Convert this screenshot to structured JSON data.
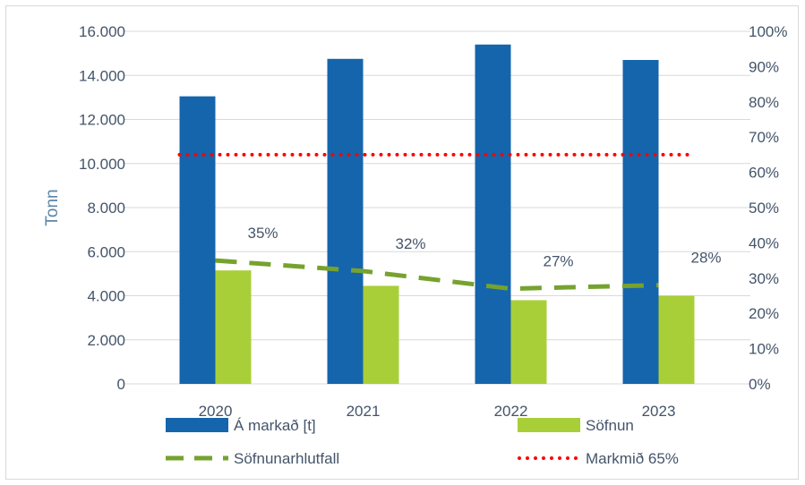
{
  "chart_data": {
    "type": "bar",
    "categories": [
      "2020",
      "2021",
      "2022",
      "2023"
    ],
    "series": [
      {
        "name": "Á markað [t]",
        "kind": "bar",
        "axis": "left",
        "color": "#1565ad",
        "values": [
          13050,
          14750,
          15400,
          14700
        ]
      },
      {
        "name": "Söfnun",
        "kind": "bar",
        "axis": "left",
        "color": "#a9cf38",
        "values": [
          5150,
          4450,
          3800,
          4000
        ]
      },
      {
        "name": "Söfnunarhlutfall",
        "kind": "line",
        "style": "dashed",
        "axis": "right",
        "color": "#76a22e",
        "values": [
          35,
          32,
          27,
          28
        ],
        "labels": [
          "35%",
          "32%",
          "27%",
          "28%"
        ]
      },
      {
        "name": "Markmið 65%",
        "kind": "line",
        "style": "dotted",
        "axis": "right",
        "color": "#ff0000",
        "values": [
          65,
          65,
          65,
          65
        ]
      }
    ],
    "ylabel": "Tonn",
    "ylim": [
      0,
      16000
    ],
    "yticks": [
      "0",
      "2.000",
      "4.000",
      "6.000",
      "8.000",
      "10.000",
      "12.000",
      "14.000",
      "16.000"
    ],
    "y2lim": [
      0,
      100
    ],
    "y2ticks": [
      "0%",
      "10%",
      "20%",
      "30%",
      "40%",
      "50%",
      "60%",
      "70%",
      "80%",
      "90%",
      "100%"
    ],
    "grid": true,
    "legend_position": "bottom",
    "gridline_color": "#d9d9d9",
    "axis_text_color": "#44546a"
  }
}
